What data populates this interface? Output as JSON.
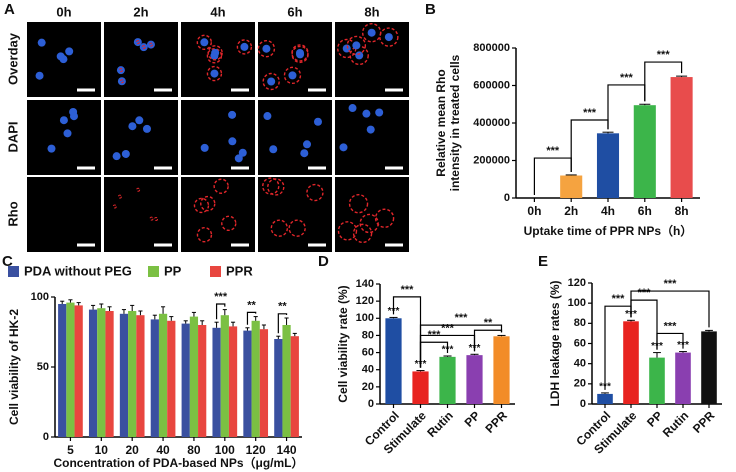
{
  "panel_a": {
    "label": "A",
    "columns": [
      "0h",
      "2h",
      "4h",
      "6h",
      "8h"
    ],
    "rows": [
      "Overday",
      "DAPI",
      "Rho"
    ]
  },
  "chart_data": [
    {
      "panel_label": "B",
      "type": "bar",
      "categories": [
        "0h",
        "2h",
        "4h",
        "6h",
        "8h"
      ],
      "values": [
        0,
        120000,
        345000,
        495000,
        645000
      ],
      "errors": [
        0,
        3000,
        6000,
        5000,
        5000
      ],
      "colors": [
        "#ffffff",
        "#f5a340",
        "#1f4ea3",
        "#3cb54a",
        "#e84c4c"
      ],
      "ylim": [
        0,
        800000
      ],
      "yticks": [
        0,
        200000,
        400000,
        600000,
        800000
      ],
      "ylabel": [
        "Relative mean Rho",
        "intensity in treated cells"
      ],
      "xlabel": "Uptake time of PPR NPs（h）",
      "annotations": [
        "***",
        "***",
        "***",
        "***"
      ]
    },
    {
      "panel_label": "C",
      "type": "grouped_bar",
      "categories": [
        "5",
        "10",
        "20",
        "40",
        "80",
        "100",
        "120",
        "140"
      ],
      "series": [
        {
          "name": "PDA without PEG",
          "color": "#3a50a0",
          "values": [
            95,
            91,
            88,
            84,
            81,
            78,
            76,
            70
          ],
          "errors": [
            2,
            3,
            3,
            3,
            2,
            4,
            2,
            2
          ]
        },
        {
          "name": "PP",
          "color": "#7bc043",
          "values": [
            96,
            92,
            90,
            88,
            86,
            87,
            83,
            80
          ],
          "errors": [
            2,
            3,
            4,
            5,
            3,
            4,
            3,
            5
          ]
        },
        {
          "name": "PPR",
          "color": "#e8463f",
          "values": [
            94,
            90,
            87,
            83,
            80,
            79,
            77,
            72
          ],
          "errors": [
            2,
            3,
            3,
            3,
            3,
            3,
            3,
            2
          ]
        }
      ],
      "ylim": [
        0,
        100
      ],
      "yticks": [
        0,
        50,
        100
      ],
      "ylabel": "Cell viability of HK-2",
      "xlabel": "Concentration of PDA-based NPs（μg/mL）",
      "annotations": [
        "***",
        "**",
        "**"
      ]
    },
    {
      "panel_label": "D",
      "type": "bar",
      "categories": [
        "Control",
        "Stimulate",
        "Rutin",
        "PP",
        "PPR"
      ],
      "values": [
        100,
        38,
        55,
        57,
        79
      ],
      "errors": [
        1,
        1,
        1,
        1,
        1
      ],
      "colors": [
        "#1f4ea3",
        "#e8231f",
        "#3cb54a",
        "#8a3fb0",
        "#f28c28"
      ],
      "ylim": [
        0,
        140
      ],
      "yticks": [
        0,
        20,
        40,
        60,
        80,
        100,
        120,
        140
      ],
      "ylabel": "Cell viability rate (%)",
      "annotations": [
        "***",
        "***",
        "***",
        "***",
        "***",
        "***",
        "***",
        "***",
        "**"
      ]
    },
    {
      "panel_label": "E",
      "type": "bar",
      "categories": [
        "Control",
        "Stimulate",
        "PP",
        "Rutin",
        "PPR"
      ],
      "values": [
        10,
        82,
        46,
        51,
        72
      ],
      "errors": [
        1,
        1,
        5,
        1,
        1
      ],
      "colors": [
        "#1f4ea3",
        "#e8231f",
        "#3cb54a",
        "#8a3fb0",
        "#111111"
      ],
      "ylim": [
        0,
        120
      ],
      "yticks": [
        0,
        20,
        40,
        60,
        80,
        100,
        120
      ],
      "ylabel": "LDH leakage rates (%)",
      "annotations": [
        "***",
        "***",
        "***",
        "***",
        "***",
        "***",
        "***",
        "***"
      ]
    }
  ]
}
